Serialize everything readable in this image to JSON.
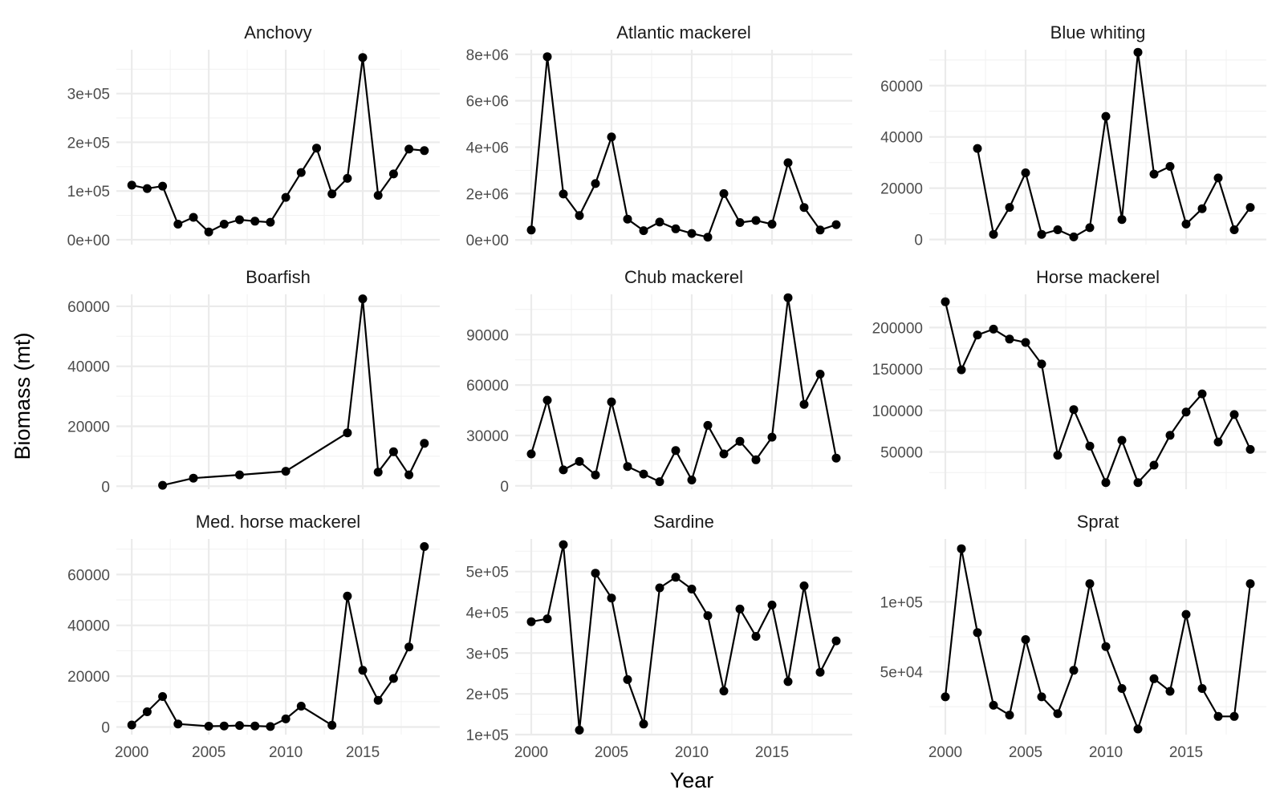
{
  "chart_data": {
    "type": "line",
    "layout": "facet_wrap 3x3",
    "xlabel": "Year",
    "ylabel": "Biomass (mt)",
    "grid": true,
    "shared_x": {
      "range": [
        1999,
        2020
      ],
      "ticks": [
        2000,
        2005,
        2010,
        2015
      ],
      "tick_labels": [
        "2000",
        "2005",
        "2010",
        "2015"
      ]
    },
    "panels": [
      {
        "title": "Anchovy",
        "ylim": [
          -10000,
          390000
        ],
        "y_ticks": [
          0,
          100000,
          200000,
          300000
        ],
        "y_tick_labels": [
          "0e+00",
          "1e+05",
          "2e+05",
          "3e+05"
        ],
        "x": [
          2000,
          2001,
          2002,
          2003,
          2004,
          2005,
          2006,
          2007,
          2008,
          2009,
          2010,
          2011,
          2012,
          2013,
          2014,
          2015,
          2016,
          2017,
          2018,
          2019
        ],
        "y": [
          112000,
          105000,
          110000,
          32000,
          46000,
          16000,
          32000,
          41000,
          38000,
          36000,
          87000,
          138000,
          188000,
          94000,
          126000,
          374000,
          91000,
          135000,
          186000,
          183000
        ]
      },
      {
        "title": "Atlantic mackerel",
        "ylim": [
          -200000,
          8200000
        ],
        "y_ticks": [
          0,
          2000000,
          4000000,
          6000000,
          8000000
        ],
        "y_tick_labels": [
          "0e+00",
          "2e+06",
          "4e+06",
          "6e+06",
          "8e+06"
        ],
        "x": [
          2000,
          2001,
          2002,
          2003,
          2004,
          2005,
          2006,
          2007,
          2008,
          2009,
          2010,
          2011,
          2012,
          2013,
          2014,
          2015,
          2016,
          2017,
          2018,
          2019
        ],
        "y": [
          430000,
          7900000,
          1980000,
          1050000,
          2430000,
          4440000,
          900000,
          400000,
          770000,
          480000,
          280000,
          120000,
          2000000,
          750000,
          840000,
          680000,
          3330000,
          1400000,
          430000,
          660000
        ]
      },
      {
        "title": "Blue whiting",
        "ylim": [
          -2000,
          74000
        ],
        "y_ticks": [
          0,
          20000,
          40000,
          60000
        ],
        "y_tick_labels": [
          "0",
          "20000",
          "40000",
          "60000"
        ],
        "x": [
          2002,
          2003,
          2004,
          2005,
          2006,
          2007,
          2008,
          2009,
          2010,
          2011,
          2012,
          2013,
          2014,
          2015,
          2016,
          2017,
          2018,
          2019
        ],
        "y": [
          35500,
          2000,
          12500,
          26000,
          2000,
          3800,
          1000,
          4600,
          48000,
          7800,
          73000,
          25500,
          28500,
          6000,
          12000,
          24000,
          3800,
          12500
        ]
      },
      {
        "title": "Boarfish",
        "ylim": [
          -1000,
          64000
        ],
        "y_ticks": [
          0,
          20000,
          40000,
          60000
        ],
        "y_tick_labels": [
          "0",
          "20000",
          "40000",
          "60000"
        ],
        "x": [
          2002,
          2004,
          2007,
          2010,
          2014,
          2015,
          2016,
          2017,
          2018,
          2019
        ],
        "y": [
          300,
          2700,
          3800,
          5000,
          17800,
          62500,
          4700,
          11500,
          3800,
          14300
        ]
      },
      {
        "title": "Chub mackerel",
        "ylim": [
          -2000,
          114000
        ],
        "y_ticks": [
          0,
          30000,
          60000,
          90000
        ],
        "y_tick_labels": [
          "0",
          "30000",
          "60000",
          "90000"
        ],
        "x": [
          2000,
          2001,
          2002,
          2003,
          2004,
          2005,
          2006,
          2007,
          2008,
          2009,
          2010,
          2011,
          2012,
          2013,
          2014,
          2015,
          2016,
          2017,
          2018,
          2019
        ],
        "y": [
          19000,
          51000,
          9500,
          14500,
          6500,
          50000,
          11500,
          7000,
          2500,
          21000,
          3500,
          36000,
          19000,
          26500,
          15500,
          29000,
          112000,
          48500,
          66500,
          16500
        ]
      },
      {
        "title": "Horse mackerel",
        "ylim": [
          5000,
          240000
        ],
        "y_ticks": [
          50000,
          100000,
          150000,
          200000
        ],
        "y_tick_labels": [
          "50000",
          "100000",
          "150000",
          "200000"
        ],
        "x": [
          2000,
          2001,
          2002,
          2003,
          2004,
          2005,
          2006,
          2007,
          2008,
          2009,
          2010,
          2011,
          2012,
          2013,
          2014,
          2015,
          2016,
          2017,
          2018,
          2019
        ],
        "y": [
          231000,
          149000,
          191000,
          198000,
          186000,
          182000,
          156000,
          46000,
          101000,
          57000,
          13000,
          64000,
          13000,
          34000,
          70000,
          98000,
          120000,
          62000,
          95000,
          53000
        ]
      },
      {
        "title": "Med. horse mackerel",
        "ylim": [
          -3000,
          74000
        ],
        "y_ticks": [
          0,
          20000,
          40000,
          60000
        ],
        "y_tick_labels": [
          "0",
          "20000",
          "40000",
          "60000"
        ],
        "x": [
          2000,
          2001,
          2002,
          2003,
          2005,
          2006,
          2007,
          2008,
          2009,
          2010,
          2011,
          2013,
          2014,
          2015,
          2016,
          2017,
          2018,
          2019
        ],
        "y": [
          800,
          6000,
          12000,
          1200,
          300,
          400,
          600,
          400,
          200,
          3200,
          8200,
          700,
          51500,
          22300,
          10500,
          19100,
          31500,
          71000
        ]
      },
      {
        "title": "Sardine",
        "ylim": [
          100000,
          580000
        ],
        "y_ticks": [
          100000,
          200000,
          300000,
          400000,
          500000
        ],
        "y_tick_labels": [
          "1e+05",
          "2e+05",
          "3e+05",
          "4e+05",
          "5e+05"
        ],
        "x": [
          2000,
          2001,
          2002,
          2003,
          2004,
          2005,
          2006,
          2007,
          2008,
          2009,
          2010,
          2011,
          2012,
          2013,
          2014,
          2015,
          2016,
          2017,
          2018,
          2019
        ],
        "y": [
          377000,
          384000,
          566000,
          111000,
          496000,
          435000,
          235000,
          126000,
          460000,
          486000,
          457000,
          392000,
          207000,
          408000,
          341000,
          418000,
          230000,
          465000,
          253000,
          330000
        ]
      },
      {
        "title": "Sprat",
        "ylim": [
          5000,
          145000
        ],
        "y_ticks": [
          50000,
          100000
        ],
        "y_tick_labels": [
          "5e+04",
          "1e+05"
        ],
        "x": [
          2000,
          2001,
          2002,
          2003,
          2004,
          2005,
          2006,
          2007,
          2008,
          2009,
          2010,
          2011,
          2012,
          2013,
          2014,
          2015,
          2016,
          2017,
          2018,
          2019
        ],
        "y": [
          32000,
          138000,
          78000,
          26000,
          19000,
          73000,
          32000,
          20000,
          51000,
          113000,
          68000,
          38000,
          9000,
          45000,
          36000,
          91000,
          38000,
          18000,
          18000,
          113000
        ]
      }
    ]
  }
}
